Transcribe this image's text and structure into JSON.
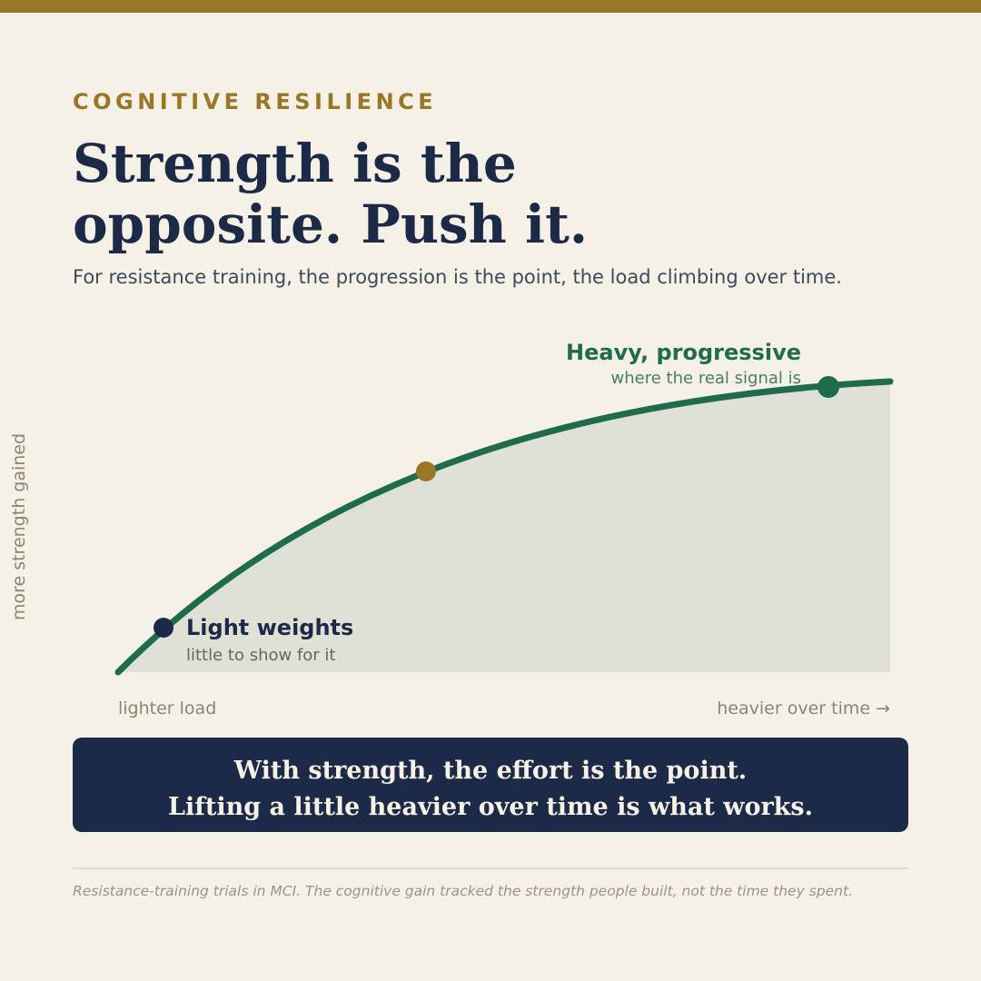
{
  "header": {
    "eyebrow": "COGNITIVE RESILIENCE",
    "title_lines": [
      "Strength is the",
      "opposite. Push it."
    ],
    "subtitle": "For resistance training, the progression is the point, the load climbing over time."
  },
  "diagram": {
    "y_label": "more strength gained",
    "x_start_label": "lighter load",
    "x_end_label": "heavier over time →",
    "points": [
      {
        "label": "Light weights",
        "sublabel": "little to show for it"
      },
      {
        "label": "Heavy, progressive",
        "sublabel": "where the real signal is"
      }
    ]
  },
  "banner": {
    "lines": [
      "With strength, the effort is the point.",
      "Lifting a little heavier over time is what works."
    ]
  },
  "footnote": "Resistance-training trials in MCI. The cognitive gain tracked the strength people built, not the time they spent."
}
